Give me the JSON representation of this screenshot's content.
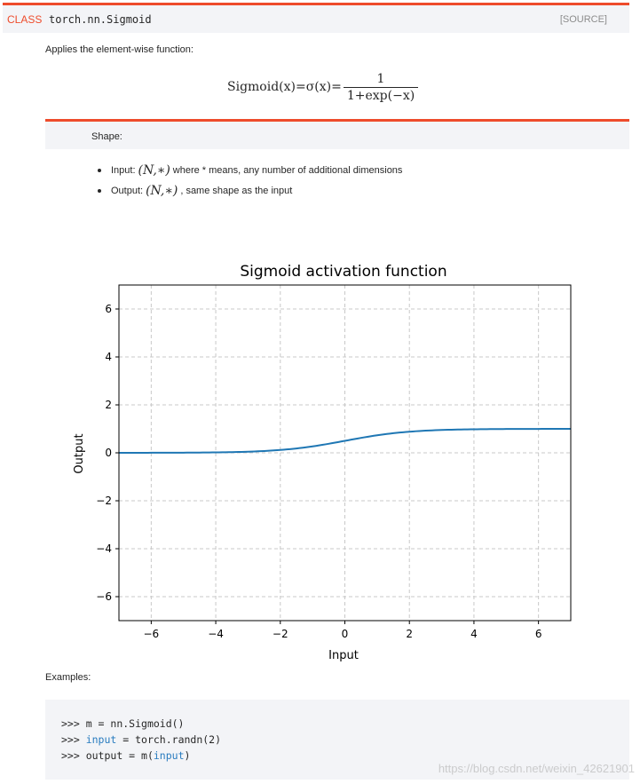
{
  "header": {
    "kind": "CLASS",
    "name": "torch.nn.Sigmoid",
    "source": "[SOURCE]"
  },
  "description": "Applies the element-wise function:",
  "formula": {
    "lhs": "Sigmoid(x)=σ(x)=",
    "numerator": "1",
    "denominator": "1+exp(−x)"
  },
  "note": {
    "title": "Shape:"
  },
  "shapes": [
    {
      "label": "Input:",
      "math": "(N,∗)",
      "text": "where * means, any number of additional dimensions"
    },
    {
      "label": "Output:",
      "math": "(N,∗)",
      "text": ", same shape as the input"
    }
  ],
  "chart_data": {
    "type": "line",
    "title": "Sigmoid activation function",
    "xlabel": "Input",
    "ylabel": "Output",
    "xlim": [
      -7,
      7
    ],
    "ylim": [
      -7,
      7
    ],
    "xticks": [
      -6,
      -4,
      -2,
      0,
      2,
      4,
      6
    ],
    "yticks": [
      -6,
      -4,
      -2,
      0,
      2,
      4,
      6
    ],
    "grid": true,
    "line_color": "#1f77b4",
    "x": [
      -7,
      -6,
      -5,
      -4,
      -3,
      -2,
      -1,
      0,
      1,
      2,
      3,
      4,
      5,
      6,
      7
    ],
    "y": [
      0.001,
      0.002,
      0.007,
      0.018,
      0.047,
      0.119,
      0.269,
      0.5,
      0.731,
      0.881,
      0.953,
      0.982,
      0.993,
      0.998,
      0.999
    ]
  },
  "examples_label": "Examples:",
  "code": [
    {
      "prompt": ">>> ",
      "pre": "m = nn.Sigmoid()",
      "kw": "",
      "post": ""
    },
    {
      "prompt": ">>> ",
      "pre": "",
      "kw": "input",
      "post": " = torch.randn(2)"
    },
    {
      "prompt": ">>> ",
      "pre": "output = m(",
      "kw": "input",
      "post": ")"
    }
  ],
  "watermark": "https://blog.csdn.net/weixin_42621901",
  "colors": {
    "accent": "#ee4c2c",
    "panel": "#f3f4f7",
    "keyword": "#287bbf"
  }
}
